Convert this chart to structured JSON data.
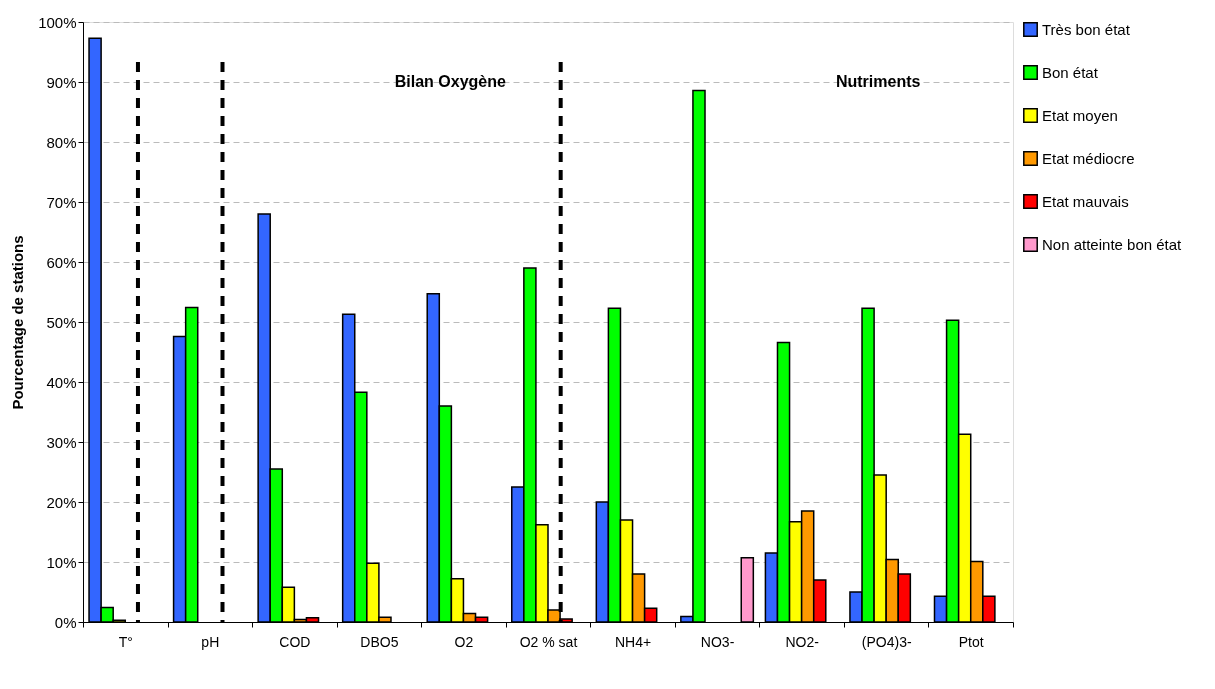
{
  "chart_data": {
    "type": "bar",
    "ylabel": "Pourcentage de stations",
    "categories": [
      "T°",
      "pH",
      "COD",
      "DBO5",
      "O2",
      "O2 % sat",
      "NH4+",
      "NO3-",
      "NO2-",
      "(PO4)3-",
      "Ptot"
    ],
    "series": [
      {
        "name": "Très bon état",
        "color": "#3366ff",
        "values": [
          97.3,
          47.6,
          68.0,
          51.3,
          54.7,
          22.5,
          20.0,
          0.9,
          11.5,
          5.0,
          4.3
        ]
      },
      {
        "name": "Bon état",
        "color": "#00ff00",
        "values": [
          2.4,
          52.4,
          25.5,
          38.3,
          36.0,
          59.0,
          52.3,
          88.6,
          46.6,
          52.3,
          50.3
        ]
      },
      {
        "name": "Etat moyen",
        "color": "#ffff00",
        "values": [
          0.3,
          null,
          5.8,
          9.8,
          7.2,
          16.2,
          17.0,
          null,
          16.7,
          24.5,
          31.3
        ]
      },
      {
        "name": "Etat médiocre",
        "color": "#ff9900",
        "values": [
          null,
          null,
          0.4,
          0.8,
          1.4,
          2.0,
          8.0,
          null,
          18.5,
          10.4,
          10.1
        ]
      },
      {
        "name": "Etat mauvais",
        "color": "#ff0000",
        "values": [
          null,
          null,
          0.7,
          null,
          0.8,
          0.5,
          2.3,
          null,
          7.0,
          8.0,
          4.3
        ]
      },
      {
        "name": "Non atteinte bon état",
        "color": "#ff99cc",
        "values": [
          null,
          null,
          null,
          null,
          null,
          null,
          null,
          10.7,
          null,
          null,
          null
        ]
      }
    ],
    "ylim": [
      0,
      100
    ],
    "yticks": [
      {
        "value": 0,
        "label": "0%"
      },
      {
        "value": 10,
        "label": "10%"
      },
      {
        "value": 20,
        "label": "20%"
      },
      {
        "value": 30,
        "label": "30%"
      },
      {
        "value": 40,
        "label": "40%"
      },
      {
        "value": 50,
        "label": "50%"
      },
      {
        "value": 60,
        "label": "60%"
      },
      {
        "value": 70,
        "label": "70%"
      },
      {
        "value": 80,
        "label": "80%"
      },
      {
        "value": 90,
        "label": "90%"
      },
      {
        "value": 100,
        "label": "100%"
      }
    ],
    "ref_lines": [
      {
        "axis": "x",
        "value": "T°",
        "line_style": "dashed",
        "color": "#000000"
      },
      {
        "axis": "x",
        "value": "pH",
        "line_style": "dashed",
        "color": "#000000"
      },
      {
        "axis": "x",
        "value": "O2 % sat",
        "line_style": "dashed",
        "color": "#000000"
      }
    ],
    "annotations": [
      "Bilan Oxygène",
      "Nutriments"
    ],
    "grid": "y",
    "legend": "top right"
  }
}
